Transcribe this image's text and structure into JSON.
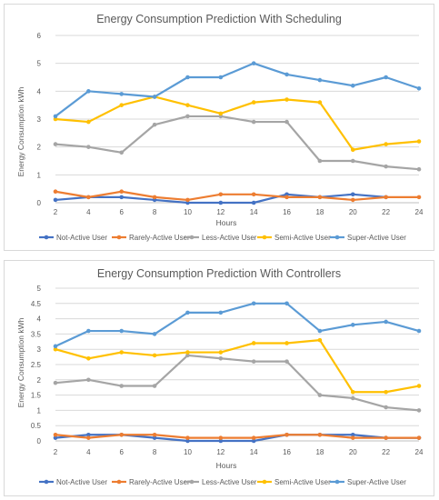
{
  "colors": {
    "grid": "#d9d9d9",
    "axis": "#bfbfbf"
  },
  "chart_data": [
    {
      "type": "line",
      "title": "Energy Consumption  Prediction With Scheduling",
      "xlabel": "Hours",
      "ylabel": "Energy Consumption kWh",
      "x": [
        2,
        4,
        6,
        8,
        10,
        12,
        14,
        16,
        18,
        20,
        22,
        24
      ],
      "ylim": [
        0,
        6
      ],
      "yticks": [
        0,
        1,
        2,
        3,
        4,
        5,
        6
      ],
      "ytick_labels": [
        "0",
        "1",
        "2",
        "3",
        "4",
        "5",
        "6"
      ],
      "grid": true,
      "legend": "bottom",
      "series": [
        {
          "name": "Not-Active User",
          "color": "#4472c4",
          "values": [
            0.1,
            0.2,
            0.2,
            0.1,
            0.0,
            0.0,
            0.0,
            0.3,
            0.2,
            0.3,
            0.2,
            null
          ]
        },
        {
          "name": "Rarely-Active User",
          "color": "#ed7d31",
          "values": [
            0.4,
            0.2,
            0.4,
            0.2,
            0.1,
            0.3,
            0.3,
            0.2,
            0.2,
            0.1,
            0.2,
            0.2
          ]
        },
        {
          "name": "Less-Active User",
          "color": "#a5a5a5",
          "values": [
            2.1,
            2.0,
            1.8,
            2.8,
            3.1,
            3.1,
            2.9,
            2.9,
            1.5,
            1.5,
            1.3,
            1.2
          ]
        },
        {
          "name": "Semi-Active User",
          "color": "#ffc000",
          "values": [
            3.0,
            2.9,
            3.5,
            3.8,
            3.5,
            3.2,
            3.6,
            3.7,
            3.6,
            1.9,
            2.1,
            2.2
          ]
        },
        {
          "name": "Super-Active User",
          "color": "#5b9bd5",
          "values": [
            3.1,
            4.0,
            3.9,
            3.8,
            4.5,
            4.5,
            5.0,
            4.6,
            4.4,
            4.2,
            4.5,
            4.1
          ]
        }
      ]
    },
    {
      "type": "line",
      "title": "Energy Consumption  Prediction With Controllers",
      "xlabel": "Hours",
      "ylabel": "Energy Consumption kWh",
      "x": [
        2,
        4,
        6,
        8,
        10,
        12,
        14,
        16,
        18,
        20,
        22,
        24
      ],
      "ylim": [
        0,
        5
      ],
      "yticks": [
        0,
        0.5,
        1,
        1.5,
        2,
        2.5,
        3,
        3.5,
        4,
        4.5,
        5
      ],
      "ytick_labels": [
        "0",
        "0.5",
        "1",
        "1.5",
        "2",
        "2.5",
        "3",
        "3.5",
        "4",
        "4.5",
        "5"
      ],
      "grid": true,
      "legend": "bottom",
      "series": [
        {
          "name": "Not-Active User",
          "color": "#4472c4",
          "values": [
            0.1,
            0.2,
            0.2,
            0.1,
            0.0,
            0.0,
            0.0,
            0.2,
            0.2,
            0.2,
            0.1,
            0.1
          ]
        },
        {
          "name": "Rarely-Active User",
          "color": "#ed7d31",
          "values": [
            0.2,
            0.1,
            0.2,
            0.2,
            0.1,
            0.1,
            0.1,
            0.2,
            0.2,
            0.1,
            0.1,
            0.1
          ]
        },
        {
          "name": "Less-Active User",
          "color": "#a5a5a5",
          "values": [
            1.9,
            2.0,
            1.8,
            1.8,
            2.8,
            2.7,
            2.6,
            2.6,
            1.5,
            1.4,
            1.1,
            1.0
          ]
        },
        {
          "name": "Semi-Active User",
          "color": "#ffc000",
          "values": [
            3.0,
            2.7,
            2.9,
            2.8,
            2.9,
            2.9,
            3.2,
            3.2,
            3.3,
            1.6,
            1.6,
            1.8
          ]
        },
        {
          "name": "Super-Active User",
          "color": "#5b9bd5",
          "values": [
            3.1,
            3.6,
            3.6,
            3.5,
            4.2,
            4.2,
            4.5,
            4.5,
            3.6,
            3.8,
            3.9,
            3.6
          ]
        }
      ]
    }
  ]
}
